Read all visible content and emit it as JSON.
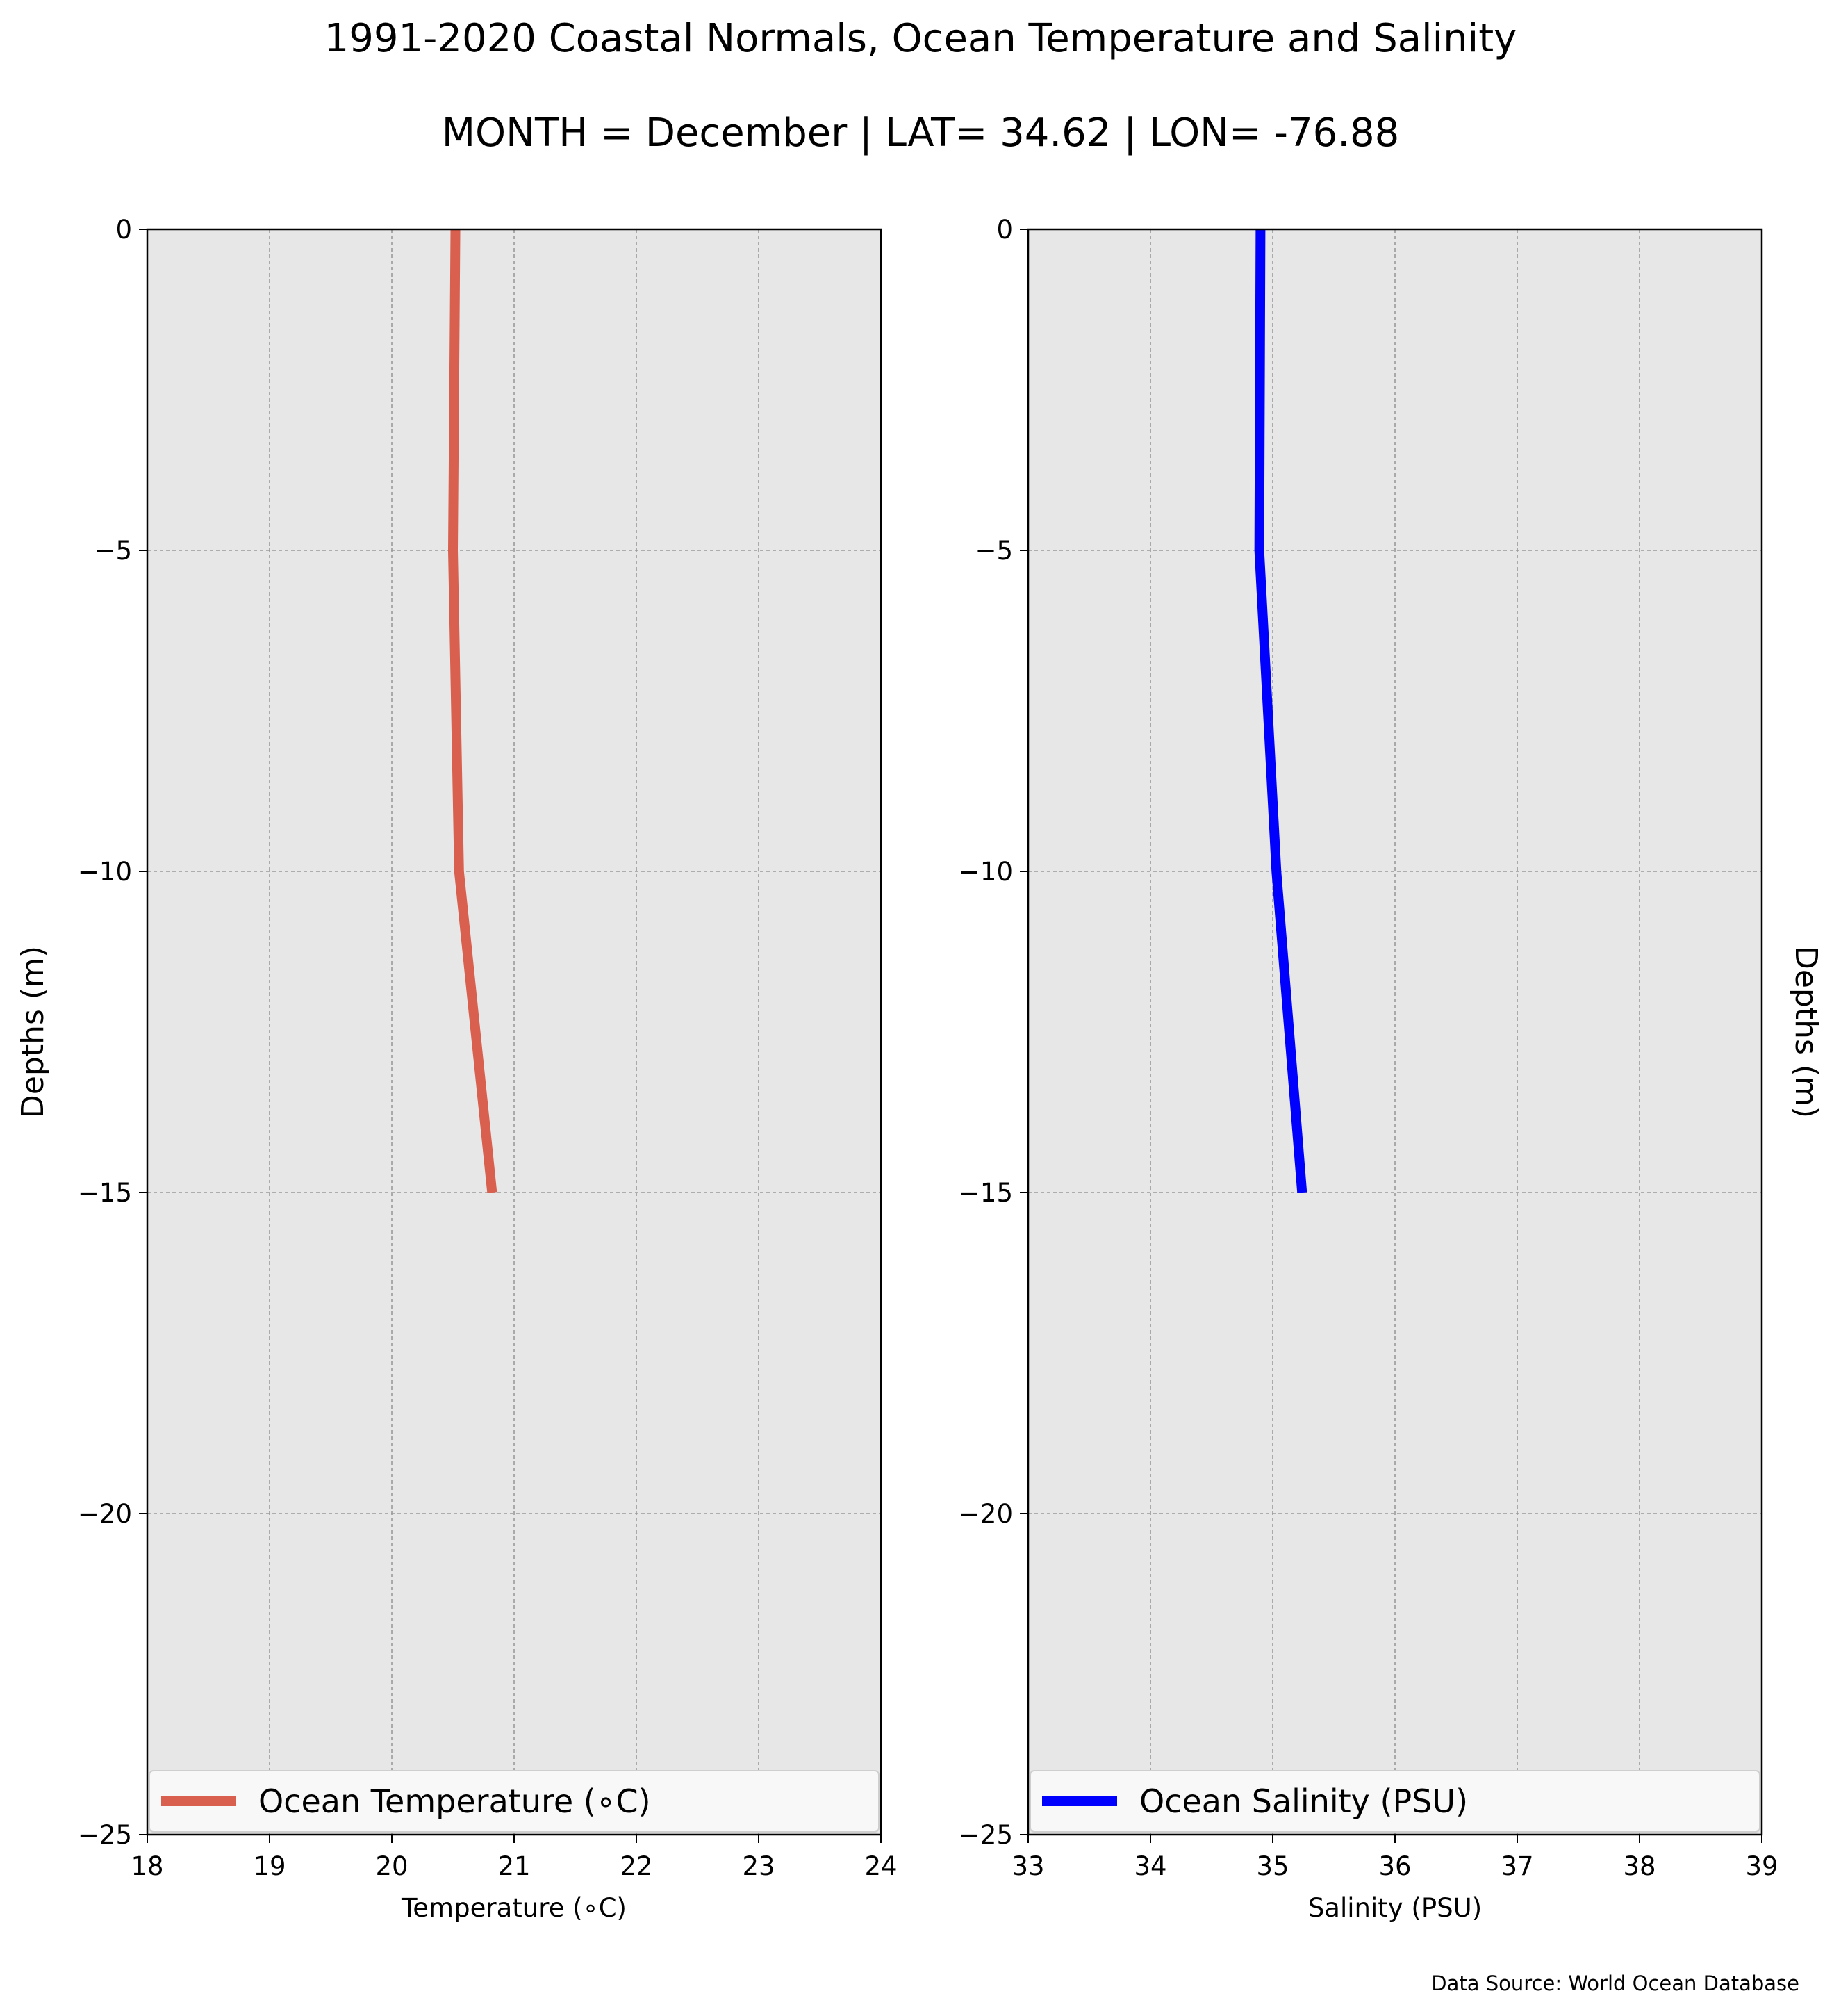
{
  "title": "1991-2020 Coastal Normals, Ocean Temperature and Salinity",
  "subtitle": "MONTH = December | LAT= 34.62 | LON= -76.88",
  "source_note": "Data Source: World Ocean Database",
  "chart_data": [
    {
      "type": "line",
      "xlabel": "Temperature (∘C)",
      "ylabel": "Depths (m)",
      "xlim": [
        18,
        24
      ],
      "ylim": [
        -25,
        0
      ],
      "xticks": [
        "18",
        "19",
        "20",
        "21",
        "22",
        "23",
        "24"
      ],
      "yticks": [
        "0",
        "−5",
        "−10",
        "−15",
        "−20",
        "−25"
      ],
      "grid": true,
      "legend_position": "bottom",
      "series": [
        {
          "name": "Ocean Temperature (∘C)",
          "color": "#d95f4e",
          "x": [
            20.52,
            20.5,
            20.55,
            20.82
          ],
          "y": [
            0,
            -5,
            -10,
            -15
          ]
        }
      ]
    },
    {
      "type": "line",
      "xlabel": "Salinity (PSU)",
      "ylabel": "Depths (m)",
      "xlim": [
        33,
        39
      ],
      "ylim": [
        -25,
        0
      ],
      "xticks": [
        "33",
        "34",
        "35",
        "36",
        "37",
        "38",
        "39"
      ],
      "yticks": [
        "0",
        "−5",
        "−10",
        "−15",
        "−20",
        "−25"
      ],
      "grid": true,
      "legend_position": "bottom",
      "series": [
        {
          "name": "Ocean Salinity (PSU)",
          "color": "#0000ff",
          "x": [
            34.9,
            34.89,
            35.03,
            35.24
          ],
          "y": [
            0,
            -5,
            -10,
            -15
          ]
        }
      ]
    }
  ]
}
